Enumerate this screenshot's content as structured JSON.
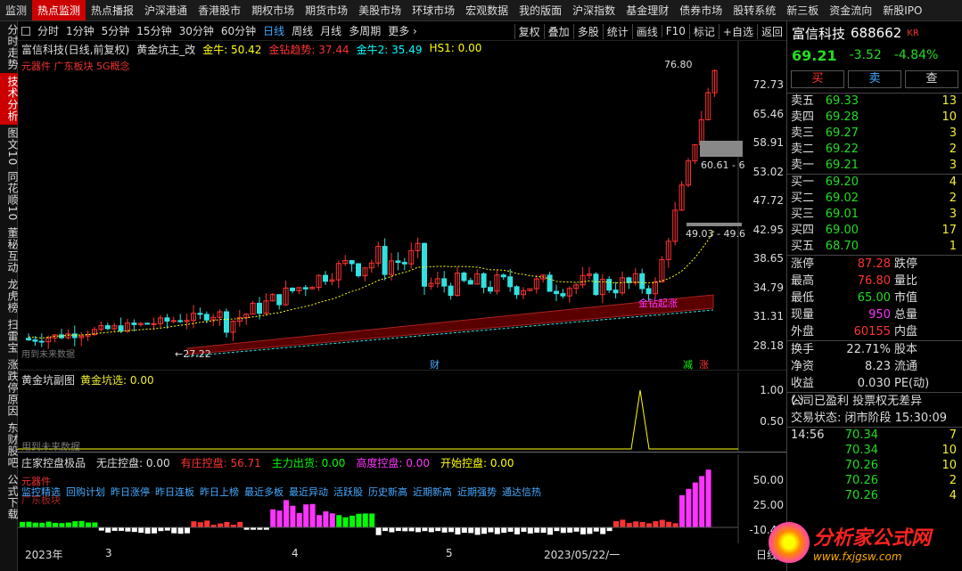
{
  "top_nav": [
    "监测",
    "热点监测",
    "热点播报",
    "沪深港通",
    "香港股市",
    "期权市场",
    "期货市场",
    "美股市场",
    "环球市场",
    "宏观数据",
    "我的版面",
    "沪深指数",
    "基金理财",
    "债券市场",
    "股转系统",
    "新三板",
    "资金流向",
    "新股IPO"
  ],
  "top_nav_active": 1,
  "left_nav": [
    "分时走势",
    "技术分析",
    "图文10",
    "同花顺10",
    "董秘互动",
    "龙虎榜",
    "扫雷宝",
    "涨跌停原因",
    "东财股吧",
    "公式下载"
  ],
  "left_nav_active": 1,
  "toolbar": {
    "periods": [
      "分时",
      "1分钟",
      "5分钟",
      "15分钟",
      "30分钟",
      "60分钟",
      "日线",
      "周线",
      "月线",
      "多周期",
      "更多 ›"
    ],
    "active_period": "日线",
    "right": [
      "复权",
      "叠加",
      "多股",
      "统计",
      "画线",
      "F10",
      "标记",
      "+自选",
      "返回"
    ]
  },
  "main_chart": {
    "stock": "富信科技(日线,前复权)",
    "indicator": "黄金坑主_改",
    "legend": [
      {
        "label": "金牛: 50.42",
        "color": "#ffff00"
      },
      {
        "label": "金钻趋势: 37.44",
        "color": "#ff3333"
      },
      {
        "label": "金牛2: 35.49",
        "color": "#00ffff"
      },
      {
        "label": "HS1: 0.00",
        "color": "#ffff00"
      }
    ],
    "concepts": "元器件 广东板块 5G概念",
    "axis": [
      "72.73",
      "65.46",
      "58.91",
      "53.02",
      "47.72",
      "42.95",
      "38.65",
      "34.79",
      "31.31",
      "28.18"
    ],
    "high_label": "76.80",
    "low_label": "27.22",
    "box1": "60.61 - 6",
    "box2": "49.03 - 49.6",
    "signal_text": "金钻起涨",
    "bottom_note": "用到未来数据",
    "markers": [
      "财",
      "减",
      "涨"
    ]
  },
  "sub1": {
    "title": "黄金坑副图",
    "value": "黄金坑选: 0.00",
    "axis": [
      "1.00",
      "0.50"
    ],
    "note": "用到未来数据"
  },
  "sub2": {
    "title": "庄家控盘极品",
    "values": [
      {
        "label": "无庄控盘: 0.00",
        "color": "#dddddd"
      },
      {
        "label": "有庄控盘: 56.71",
        "color": "#ff3333"
      },
      {
        "label": "主力出货: 0.00",
        "color": "#00ff00"
      },
      {
        "label": "高度控盘: 0.00",
        "color": "#ff33ff"
      },
      {
        "label": "开始控盘: 0.00",
        "color": "#ffff00"
      }
    ],
    "tag1": "元器件",
    "tag2": "广东板块",
    "links": [
      "监控精选",
      "回购计划",
      "昨日涨停",
      "昨日连板",
      "昨日上榜",
      "最近多板",
      "最近异动",
      "活跃股",
      "历史新高",
      "近期新高",
      "近期强势",
      "通达信热"
    ],
    "axis": [
      "50.00",
      "25.00",
      "-10.44"
    ]
  },
  "date_axis": [
    "2023年",
    "3",
    "4",
    "5",
    "2023/05/22/一",
    "日线"
  ],
  "right_panel": {
    "name": "富信科技",
    "code": "688662",
    "badge": "KR",
    "price": "69.21",
    "change": "-3.52",
    "pct": "-4.84%",
    "buttons": [
      "买",
      "卖",
      "查"
    ],
    "asks": [
      {
        "l": "卖五",
        "p": "69.33",
        "q": "13"
      },
      {
        "l": "卖四",
        "p": "69.28",
        "q": "10"
      },
      {
        "l": "卖三",
        "p": "69.27",
        "q": "3"
      },
      {
        "l": "卖二",
        "p": "69.22",
        "q": "2"
      },
      {
        "l": "卖一",
        "p": "69.21",
        "q": "3"
      }
    ],
    "bids": [
      {
        "l": "买一",
        "p": "69.20",
        "q": "4"
      },
      {
        "l": "买二",
        "p": "69.02",
        "q": "2"
      },
      {
        "l": "买三",
        "p": "69.01",
        "q": "3"
      },
      {
        "l": "买四",
        "p": "69.00",
        "q": "17"
      },
      {
        "l": "买五",
        "p": "68.70",
        "q": "1"
      }
    ],
    "stats1": [
      {
        "k": "涨停",
        "v": "87.28",
        "c": "#ff3333",
        "k2": "跌停"
      },
      {
        "k": "最高",
        "v": "76.80",
        "c": "#ff3333",
        "k2": "量比"
      },
      {
        "k": "最低",
        "v": "65.00",
        "c": "#22dd22",
        "k2": "市值"
      },
      {
        "k": "现量",
        "v": "950",
        "c": "#ff33ff",
        "k2": "总量"
      },
      {
        "k": "外盘",
        "v": "60155",
        "c": "#ff3333",
        "k2": "内盘"
      }
    ],
    "stats2": [
      {
        "k": "换手",
        "v": "22.71%",
        "c": "#dddddd",
        "k2": "股本"
      },
      {
        "k": "净资",
        "v": "8.23",
        "c": "#dddddd",
        "k2": "流通"
      },
      {
        "k": "收益(-)",
        "v": "0.030",
        "c": "#dddddd",
        "k2": "PE(动)"
      }
    ],
    "notice": "公司已盈利 投票权无差异",
    "status": "交易状态: 闭市阶段 15:30:09",
    "trades": [
      {
        "t": "14:56",
        "p": "70.34",
        "q": "7"
      },
      {
        "t": "",
        "p": "70.34",
        "q": "10"
      },
      {
        "t": "",
        "p": "70.26",
        "q": "10"
      },
      {
        "t": "",
        "p": "70.26",
        "q": "2"
      },
      {
        "t": "",
        "p": "70.26",
        "q": "4"
      }
    ]
  },
  "watermark": {
    "cn": "分析家公式网",
    "url": "www.fxjgsw.com"
  }
}
